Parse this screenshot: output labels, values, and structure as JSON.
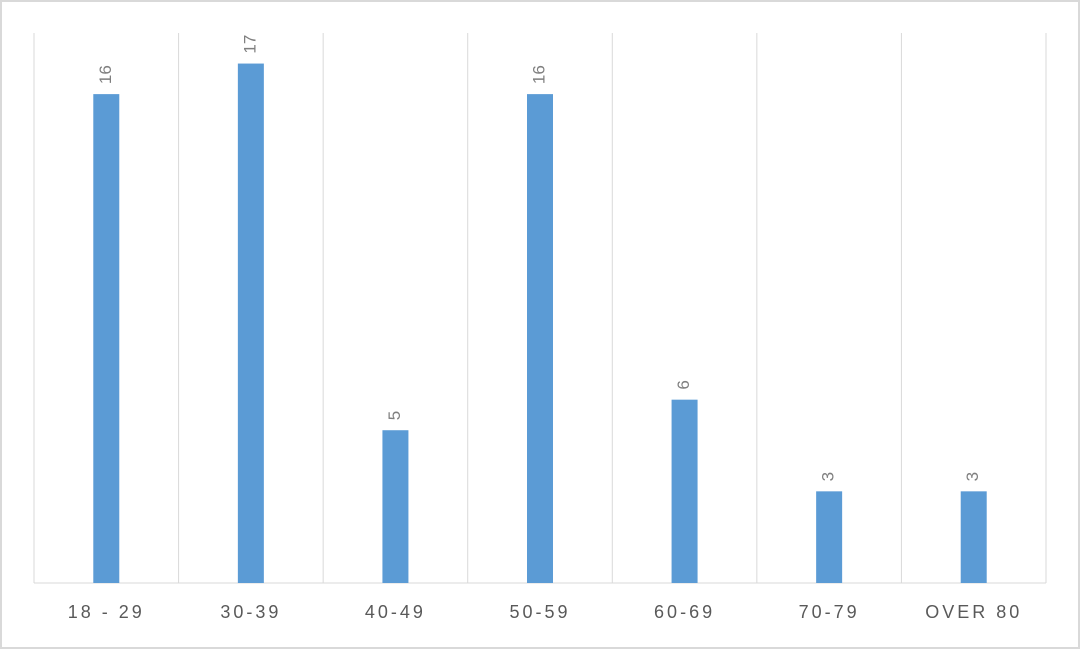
{
  "chart_data": {
    "type": "bar",
    "categories": [
      "18 - 29",
      "30-39",
      "40-49",
      "50-59",
      "60-69",
      "70-79",
      "OVER 80"
    ],
    "values": [
      16,
      17,
      5,
      16,
      6,
      3,
      3
    ],
    "color": "#5b9bd5",
    "ylim": [
      0,
      18
    ],
    "grid": true
  }
}
